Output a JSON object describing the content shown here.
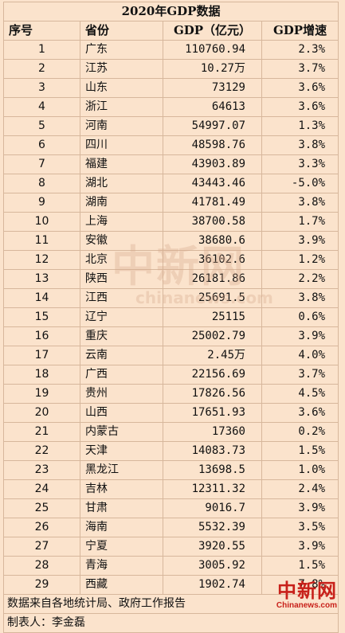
{
  "title": "2020年GDP数据",
  "headers": {
    "rank": "序号",
    "province": "省份",
    "gdp": "GDP（亿元）",
    "growth": "GDP增速"
  },
  "rows": [
    {
      "rank": "1",
      "province": "广东",
      "gdp": "110760.94",
      "growth": "2.3%"
    },
    {
      "rank": "2",
      "province": "江苏",
      "gdp": "10.27万",
      "growth": "3.7%"
    },
    {
      "rank": "3",
      "province": "山东",
      "gdp": "73129",
      "growth": "3.6%"
    },
    {
      "rank": "4",
      "province": "浙江",
      "gdp": "64613",
      "growth": "3.6%"
    },
    {
      "rank": "5",
      "province": "河南",
      "gdp": "54997.07",
      "growth": "1.3%"
    },
    {
      "rank": "6",
      "province": "四川",
      "gdp": "48598.76",
      "growth": "3.8%"
    },
    {
      "rank": "7",
      "province": "福建",
      "gdp": "43903.89",
      "growth": "3.3%"
    },
    {
      "rank": "8",
      "province": "湖北",
      "gdp": "43443.46",
      "growth": "-5.0%"
    },
    {
      "rank": "9",
      "province": "湖南",
      "gdp": "41781.49",
      "growth": "3.8%"
    },
    {
      "rank": "10",
      "province": "上海",
      "gdp": "38700.58",
      "growth": "1.7%"
    },
    {
      "rank": "11",
      "province": "安徽",
      "gdp": "38680.6",
      "growth": "3.9%"
    },
    {
      "rank": "12",
      "province": "北京",
      "gdp": "36102.6",
      "growth": "1.2%"
    },
    {
      "rank": "13",
      "province": "陕西",
      "gdp": "26181.86",
      "growth": "2.2%"
    },
    {
      "rank": "14",
      "province": "江西",
      "gdp": "25691.5",
      "growth": "3.8%"
    },
    {
      "rank": "15",
      "province": "辽宁",
      "gdp": "25115",
      "growth": "0.6%"
    },
    {
      "rank": "16",
      "province": "重庆",
      "gdp": "25002.79",
      "growth": "3.9%"
    },
    {
      "rank": "17",
      "province": "云南",
      "gdp": "2.45万",
      "growth": "4.0%"
    },
    {
      "rank": "18",
      "province": "广西",
      "gdp": "22156.69",
      "growth": "3.7%"
    },
    {
      "rank": "19",
      "province": "贵州",
      "gdp": "17826.56",
      "growth": "4.5%"
    },
    {
      "rank": "20",
      "province": "山西",
      "gdp": "17651.93",
      "growth": "3.6%"
    },
    {
      "rank": "21",
      "province": "内蒙古",
      "gdp": "17360",
      "growth": "0.2%"
    },
    {
      "rank": "22",
      "province": "天津",
      "gdp": "14083.73",
      "growth": "1.5%"
    },
    {
      "rank": "23",
      "province": "黑龙江",
      "gdp": "13698.5",
      "growth": "1.0%"
    },
    {
      "rank": "24",
      "province": "吉林",
      "gdp": "12311.32",
      "growth": "2.4%"
    },
    {
      "rank": "25",
      "province": "甘肃",
      "gdp": "9016.7",
      "growth": "3.9%"
    },
    {
      "rank": "26",
      "province": "海南",
      "gdp": "5532.39",
      "growth": "3.5%"
    },
    {
      "rank": "27",
      "province": "宁夏",
      "gdp": "3920.55",
      "growth": "3.9%"
    },
    {
      "rank": "28",
      "province": "青海",
      "gdp": "3005.92",
      "growth": "1.5%"
    },
    {
      "rank": "29",
      "province": "西藏",
      "gdp": "1902.74",
      "growth": "7.8%"
    }
  ],
  "footer": {
    "source": "数据来自各地统计局、政府工作报告",
    "author": "制表人：李金磊"
  },
  "watermark": {
    "cn": "中新网",
    "en": "chinanews.com"
  },
  "logo": {
    "cn": "中新网",
    "en": "Chinanews.com"
  },
  "colors": {
    "background": "#fbe3cc",
    "logo": "#c8211a"
  }
}
